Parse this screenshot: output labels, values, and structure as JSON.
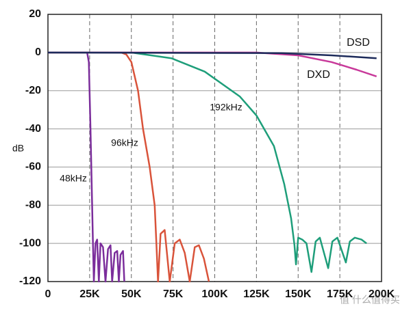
{
  "chart_data": {
    "type": "line",
    "y_label": "dB",
    "watermark": "值 什么值得买",
    "xlim": [
      0,
      200000
    ],
    "ylim": [
      -120,
      20
    ],
    "xticks": [
      0,
      {
        "value": 25000,
        "label": "25K"
      },
      {
        "value": 50000,
        "label": "50K"
      },
      {
        "value": 75000,
        "label": "75K"
      },
      {
        "value": 100000,
        "label": "100K"
      },
      {
        "value": 125000,
        "label": "125K"
      },
      {
        "value": 150000,
        "label": "150K"
      },
      {
        "value": 175000,
        "label": "175K"
      },
      {
        "value": 200000,
        "label": "200K"
      }
    ],
    "yticks": [
      20,
      0,
      -20,
      -40,
      -60,
      -80,
      -100,
      -120
    ],
    "grid": true,
    "series": [
      {
        "name": "48kHz",
        "color": "#7b2d9b",
        "x": [
          0,
          23500,
          24500,
          25500,
          26500,
          27000,
          27500,
          28500,
          29500,
          30500,
          31500,
          33000,
          34500,
          36000,
          37500,
          38500,
          40000,
          41500,
          42500,
          43500,
          45000,
          45800
        ],
        "values": [
          0,
          0,
          -5,
          -40,
          -80,
          -100,
          -120,
          -100,
          -98,
          -120,
          -100,
          -102,
          -120,
          -103,
          -101,
          -120,
          -105,
          -104,
          -120,
          -106,
          -104,
          -120
        ]
      },
      {
        "name": "96kHz",
        "color": "#d9533a",
        "x": [
          0,
          44000,
          47000,
          50000,
          54000,
          57000,
          61000,
          64000,
          65000,
          66000,
          67500,
          70000,
          73000,
          76000,
          79000,
          82000,
          85000,
          88000,
          90500,
          93500,
          96500
        ],
        "values": [
          0,
          0,
          -1,
          -5,
          -20,
          -40,
          -60,
          -80,
          -100,
          -120,
          -95,
          -93,
          -120,
          -100,
          -98,
          -105,
          -120,
          -102,
          -101,
          -108,
          -120
        ]
      },
      {
        "name": "192kHz",
        "color": "#1e9e7a",
        "x": [
          0,
          50000,
          74000,
          94000,
          115000,
          125000,
          135500,
          141700,
          145800,
          147800,
          148700,
          150000,
          152500,
          155000,
          158000,
          160500,
          163000,
          168000,
          170500,
          173500,
          178600,
          181000,
          184000,
          188000,
          191000
        ],
        "values": [
          0,
          0,
          -3,
          -10,
          -23,
          -33,
          -49,
          -69,
          -87,
          -101,
          -111,
          -97,
          -98,
          -100,
          -115,
          -99,
          -97,
          -113,
          -99,
          -97,
          -110,
          -99,
          -97,
          -98,
          -100
        ]
      },
      {
        "name": "DXD",
        "color": "#c8399a",
        "x": [
          0,
          125000,
          150000,
          170000,
          185000,
          197000
        ],
        "values": [
          0,
          0,
          -1.5,
          -5,
          -9,
          -12.5
        ]
      },
      {
        "name": "DSD",
        "color": "#1c2a5a",
        "x": [
          0,
          140000,
          170000,
          197000
        ],
        "values": [
          0,
          -0.3,
          -1.5,
          -3
        ]
      }
    ]
  }
}
